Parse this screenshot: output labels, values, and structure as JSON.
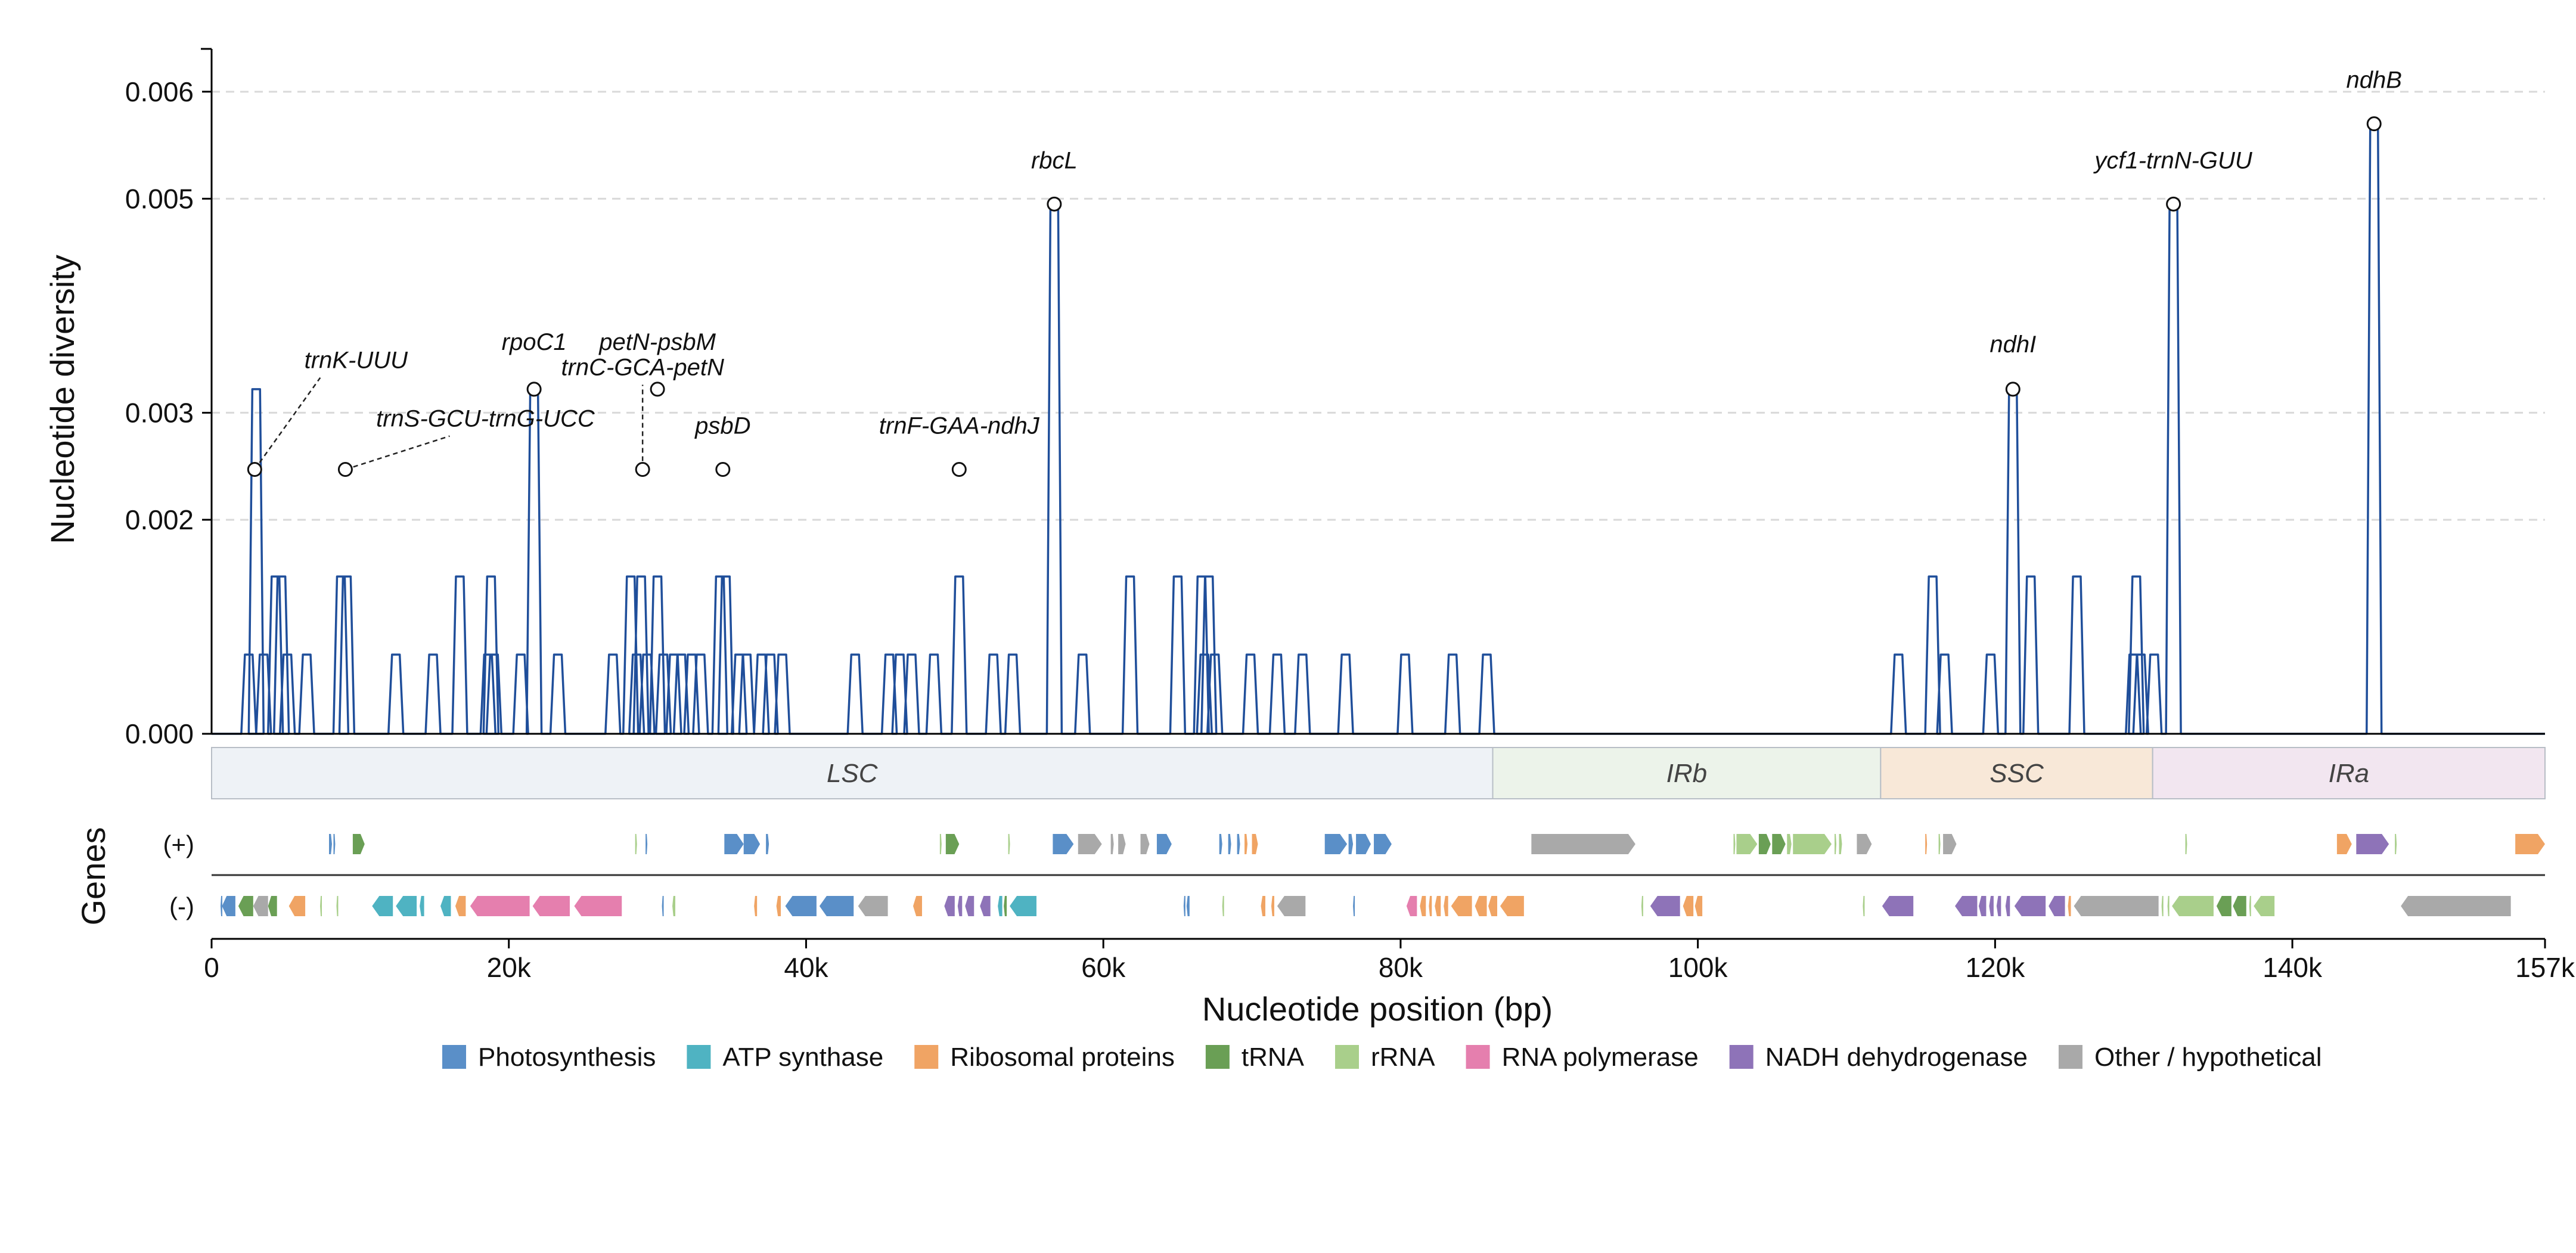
{
  "colors": {
    "line": "#1f4e9a",
    "grid": "#d9d9d9",
    "axis": "#000000",
    "Photosynthesis": "#5a8fc8",
    "ATP synthase": "#4fb3c2",
    "Ribosomal proteins": "#f0a464",
    "tRNA": "#6a9f55",
    "rRNA": "#a9cf8b",
    "RNA polymerase": "#e57fae",
    "NADH dehydrogenase": "#8e73b8",
    "Other / hypothetical": "#a9a9a9"
  },
  "chart_data": {
    "type": "line",
    "xlabel": "Nucleotide position (bp)",
    "ylabel": "Nucleotide diversity",
    "xlim": [
      0,
      157000
    ],
    "ylim": [
      0,
      0.0064
    ],
    "x_ticks": [
      0,
      20000,
      40000,
      60000,
      80000,
      100000,
      120000,
      140000,
      157000
    ],
    "x_tick_labels": [
      "0",
      "20k",
      "40k",
      "60k",
      "80k",
      "100k",
      "120k",
      "140k",
      "157k"
    ],
    "y_ticks": [
      0,
      0.002,
      0.003,
      0.005,
      0.006
    ],
    "y_tick_labels": [
      "0.000",
      "0.002",
      "0.003",
      "0.005",
      "0.006"
    ],
    "grid": "horizontal dashed",
    "pi_levels": [
      0.00074,
      0.00147,
      0.00247
    ],
    "windows": [
      [
        2500,
        1
      ],
      [
        3000,
        3
      ],
      [
        3500,
        1
      ],
      [
        4300,
        2
      ],
      [
        4700,
        2
      ],
      [
        5100,
        1
      ],
      [
        6400,
        1
      ],
      [
        8700,
        2
      ],
      [
        9100,
        2
      ],
      [
        12400,
        1
      ],
      [
        14900,
        1
      ],
      [
        16700,
        2
      ],
      [
        18600,
        1
      ],
      [
        18800,
        2
      ],
      [
        19000,
        1
      ],
      [
        20800,
        1
      ],
      [
        21700,
        3
      ],
      [
        23300,
        1
      ],
      [
        27000,
        1
      ],
      [
        28200,
        2
      ],
      [
        28600,
        1
      ],
      [
        28900,
        2
      ],
      [
        29300,
        1
      ],
      [
        30000,
        2
      ],
      [
        30400,
        1
      ],
      [
        31100,
        1
      ],
      [
        31600,
        1
      ],
      [
        32300,
        1
      ],
      [
        32900,
        1
      ],
      [
        34200,
        2
      ],
      [
        34600,
        2
      ],
      [
        35500,
        1
      ],
      [
        36000,
        1
      ],
      [
        37000,
        1
      ],
      [
        37600,
        1
      ],
      [
        38400,
        1
      ],
      [
        43300,
        1
      ],
      [
        45600,
        1
      ],
      [
        46300,
        1
      ],
      [
        47100,
        1
      ],
      [
        48600,
        1
      ],
      [
        50300,
        2
      ],
      [
        52600,
        1
      ],
      [
        53900,
        1
      ],
      [
        56700,
        4
      ],
      [
        58600,
        1
      ],
      [
        61800,
        2
      ],
      [
        65000,
        2
      ],
      [
        66600,
        2
      ],
      [
        66800,
        1
      ],
      [
        67100,
        2
      ],
      [
        67500,
        1
      ],
      [
        69900,
        1
      ],
      [
        71700,
        1
      ],
      [
        73400,
        1
      ],
      [
        76300,
        1
      ],
      [
        80300,
        1
      ],
      [
        83500,
        1
      ],
      [
        85800,
        1
      ],
      [
        113500,
        1
      ],
      [
        115800,
        2
      ],
      [
        116600,
        1
      ],
      [
        119700,
        1
      ],
      [
        121200,
        3
      ],
      [
        122400,
        2
      ],
      [
        125500,
        2
      ],
      [
        129300,
        1
      ],
      [
        129500,
        2
      ],
      [
        129800,
        1
      ],
      [
        130700,
        1
      ],
      [
        132000,
        4
      ],
      [
        145500,
        5
      ]
    ],
    "window_half_width": 500,
    "peaks": [
      {
        "x": 2900,
        "y": 0.00247,
        "label": "trnK-UUU"
      },
      {
        "x": 9000,
        "y": 0.00247,
        "label": "trnS-GCU-trnG-UCC"
      },
      {
        "x": 21700,
        "y": 0.00322,
        "label": "rpoC1"
      },
      {
        "x": 30000,
        "y": 0.00322,
        "label": "petN-psbM"
      },
      {
        "x": 29000,
        "y": 0.00247,
        "label": "trnC-GCA-petN"
      },
      {
        "x": 34400,
        "y": 0.00247,
        "label": "psbD"
      },
      {
        "x": 50300,
        "y": 0.00247,
        "label": "trnF-GAA-ndhJ"
      },
      {
        "x": 56700,
        "y": 0.00495,
        "label": "rbcL"
      },
      {
        "x": 121200,
        "y": 0.00322,
        "label": "ndhI"
      },
      {
        "x": 132000,
        "y": 0.00495,
        "label": "ycf1-trnN-GUU"
      },
      {
        "x": 145500,
        "y": 0.0057,
        "label": "ndhB"
      }
    ],
    "regions": [
      {
        "label": "LSC",
        "start": 0,
        "end": 86200,
        "color": "#eef2f6"
      },
      {
        "label": "IRb",
        "start": 86200,
        "end": 112300,
        "color": "#ecf3ea"
      },
      {
        "label": "SSC",
        "start": 112300,
        "end": 130600,
        "color": "#f8e8d8"
      },
      {
        "label": "IRa",
        "start": 130600,
        "end": 157000,
        "color": "#f2e6f0"
      }
    ],
    "genes_axis_label": "Genes",
    "strand_labels": [
      "(+)",
      "(-)"
    ],
    "genes_plus": [
      [
        7900,
        8100,
        "Photosynthesis"
      ],
      [
        8200,
        8300,
        "Photosynthesis"
      ],
      [
        9500,
        10300,
        "tRNA"
      ],
      [
        28500,
        28600,
        "rRNA"
      ],
      [
        29200,
        29300,
        "Photosynthesis"
      ],
      [
        34500,
        35800,
        "Photosynthesis"
      ],
      [
        35800,
        36900,
        "Photosynthesis"
      ],
      [
        37300,
        37500,
        "Photosynthesis"
      ],
      [
        49000,
        49100,
        "rRNA"
      ],
      [
        49400,
        50300,
        "tRNA"
      ],
      [
        53600,
        53700,
        "rRNA"
      ],
      [
        56600,
        58000,
        "Photosynthesis"
      ],
      [
        58300,
        59900,
        "Other / hypothetical"
      ],
      [
        60500,
        60700,
        "Other / hypothetical"
      ],
      [
        61000,
        61500,
        "Other / hypothetical"
      ],
      [
        62500,
        63100,
        "Other / hypothetical"
      ],
      [
        63600,
        64600,
        "Photosynthesis"
      ],
      [
        67800,
        68000,
        "Photosynthesis"
      ],
      [
        68400,
        68600,
        "Photosynthesis"
      ],
      [
        69000,
        69200,
        "Photosynthesis"
      ],
      [
        69500,
        69700,
        "Ribosomal proteins"
      ],
      [
        70000,
        70400,
        "Ribosomal proteins"
      ],
      [
        74900,
        76400,
        "Photosynthesis"
      ],
      [
        76500,
        76800,
        "Photosynthesis"
      ],
      [
        77000,
        78000,
        "Photosynthesis"
      ],
      [
        78200,
        79400,
        "Photosynthesis"
      ],
      [
        88800,
        95800,
        "Other / hypothetical"
      ],
      [
        102400,
        102500,
        "rRNA"
      ],
      [
        102600,
        104000,
        "rRNA"
      ],
      [
        104100,
        104900,
        "tRNA"
      ],
      [
        105000,
        105900,
        "tRNA"
      ],
      [
        106000,
        106300,
        "rRNA"
      ],
      [
        106400,
        109000,
        "rRNA"
      ],
      [
        109200,
        109300,
        "rRNA"
      ],
      [
        109500,
        109700,
        "rRNA"
      ],
      [
        110700,
        111700,
        "Other / hypothetical"
      ],
      [
        115300,
        115400,
        "Ribosomal proteins"
      ],
      [
        116200,
        116300,
        "rRNA"
      ],
      [
        116500,
        117400,
        "Other / hypothetical"
      ],
      [
        132800,
        132900,
        "rRNA"
      ],
      [
        143000,
        144000,
        "Ribosomal proteins"
      ],
      [
        144300,
        146500,
        "NADH dehydrogenase"
      ],
      [
        146900,
        147000,
        "rRNA"
      ],
      [
        155000,
        157000,
        "Ribosomal proteins"
      ]
    ],
    "genes_minus": [
      [
        600,
        700,
        "Photosynthesis"
      ],
      [
        700,
        1600,
        "Photosynthesis"
      ],
      [
        1800,
        2800,
        "tRNA"
      ],
      [
        2800,
        3800,
        "Other / hypothetical"
      ],
      [
        3800,
        4400,
        "tRNA"
      ],
      [
        5200,
        6300,
        "Ribosomal proteins"
      ],
      [
        7300,
        7400,
        "rRNA"
      ],
      [
        8400,
        8500,
        "rRNA"
      ],
      [
        10800,
        12200,
        "ATP synthase"
      ],
      [
        12400,
        13800,
        "ATP synthase"
      ],
      [
        14000,
        14300,
        "ATP synthase"
      ],
      [
        15400,
        16100,
        "ATP synthase"
      ],
      [
        16400,
        17100,
        "Ribosomal proteins"
      ],
      [
        17400,
        21400,
        "RNA polymerase"
      ],
      [
        21600,
        24100,
        "RNA polymerase"
      ],
      [
        24400,
        27600,
        "RNA polymerase"
      ],
      [
        30300,
        30400,
        "Photosynthesis"
      ],
      [
        31000,
        31200,
        "rRNA"
      ],
      [
        36500,
        36700,
        "Ribosomal proteins"
      ],
      [
        38000,
        38300,
        "Ribosomal proteins"
      ],
      [
        38600,
        40700,
        "Photosynthesis"
      ],
      [
        40900,
        43200,
        "Photosynthesis"
      ],
      [
        43500,
        45500,
        "Other / hypothetical"
      ],
      [
        47200,
        47800,
        "Ribosomal proteins"
      ],
      [
        49300,
        50000,
        "NADH dehydrogenase"
      ],
      [
        50200,
        50500,
        "NADH dehydrogenase"
      ],
      [
        50700,
        51300,
        "NADH dehydrogenase"
      ],
      [
        51700,
        52400,
        "NADH dehydrogenase"
      ],
      [
        52900,
        53200,
        "ATP synthase"
      ],
      [
        53300,
        53500,
        "tRNA"
      ],
      [
        53700,
        55500,
        "ATP synthase"
      ],
      [
        65400,
        65500,
        "Photosynthesis"
      ],
      [
        65600,
        65800,
        "Photosynthesis"
      ],
      [
        68000,
        68100,
        "rRNA"
      ],
      [
        70600,
        70900,
        "Ribosomal proteins"
      ],
      [
        71300,
        71500,
        "Ribosomal proteins"
      ],
      [
        71700,
        73600,
        "Other / hypothetical"
      ],
      [
        76800,
        76900,
        "Photosynthesis"
      ],
      [
        80400,
        81100,
        "RNA polymerase"
      ],
      [
        81300,
        81700,
        "Ribosomal proteins"
      ],
      [
        81900,
        82100,
        "Ribosomal proteins"
      ],
      [
        82300,
        82700,
        "Ribosomal proteins"
      ],
      [
        82900,
        83200,
        "Ribosomal proteins"
      ],
      [
        83400,
        84800,
        "Ribosomal proteins"
      ],
      [
        85000,
        85800,
        "Ribosomal proteins"
      ],
      [
        85900,
        86500,
        "Ribosomal proteins"
      ],
      [
        86700,
        88300,
        "Ribosomal proteins"
      ],
      [
        96200,
        96300,
        "rRNA"
      ],
      [
        96800,
        98800,
        "NADH dehydrogenase"
      ],
      [
        99000,
        99700,
        "Ribosomal proteins"
      ],
      [
        99800,
        100300,
        "Ribosomal proteins"
      ],
      [
        111100,
        111200,
        "rRNA"
      ],
      [
        112400,
        114500,
        "NADH dehydrogenase"
      ],
      [
        117300,
        118800,
        "NADH dehydrogenase"
      ],
      [
        118900,
        119400,
        "NADH dehydrogenase"
      ],
      [
        119600,
        119900,
        "NADH dehydrogenase"
      ],
      [
        120100,
        120400,
        "NADH dehydrogenase"
      ],
      [
        120700,
        121000,
        "NADH dehydrogenase"
      ],
      [
        121300,
        123400,
        "NADH dehydrogenase"
      ],
      [
        123600,
        124700,
        "NADH dehydrogenase"
      ],
      [
        124900,
        125100,
        "Ribosomal proteins"
      ],
      [
        125300,
        131000,
        "Other / hypothetical"
      ],
      [
        131200,
        131300,
        "rRNA"
      ],
      [
        131600,
        131700,
        "rRNA"
      ],
      [
        131900,
        134700,
        "rRNA"
      ],
      [
        134900,
        135900,
        "tRNA"
      ],
      [
        136000,
        136900,
        "tRNA"
      ],
      [
        137100,
        137200,
        "rRNA"
      ],
      [
        137400,
        138800,
        "rRNA"
      ],
      [
        147300,
        154700,
        "Other / hypothetical"
      ]
    ],
    "legend": [
      "Photosynthesis",
      "ATP synthase",
      "Ribosomal proteins",
      "tRNA",
      "rRNA",
      "RNA polymerase",
      "NADH dehydrogenase",
      "Other / hypothetical"
    ]
  }
}
